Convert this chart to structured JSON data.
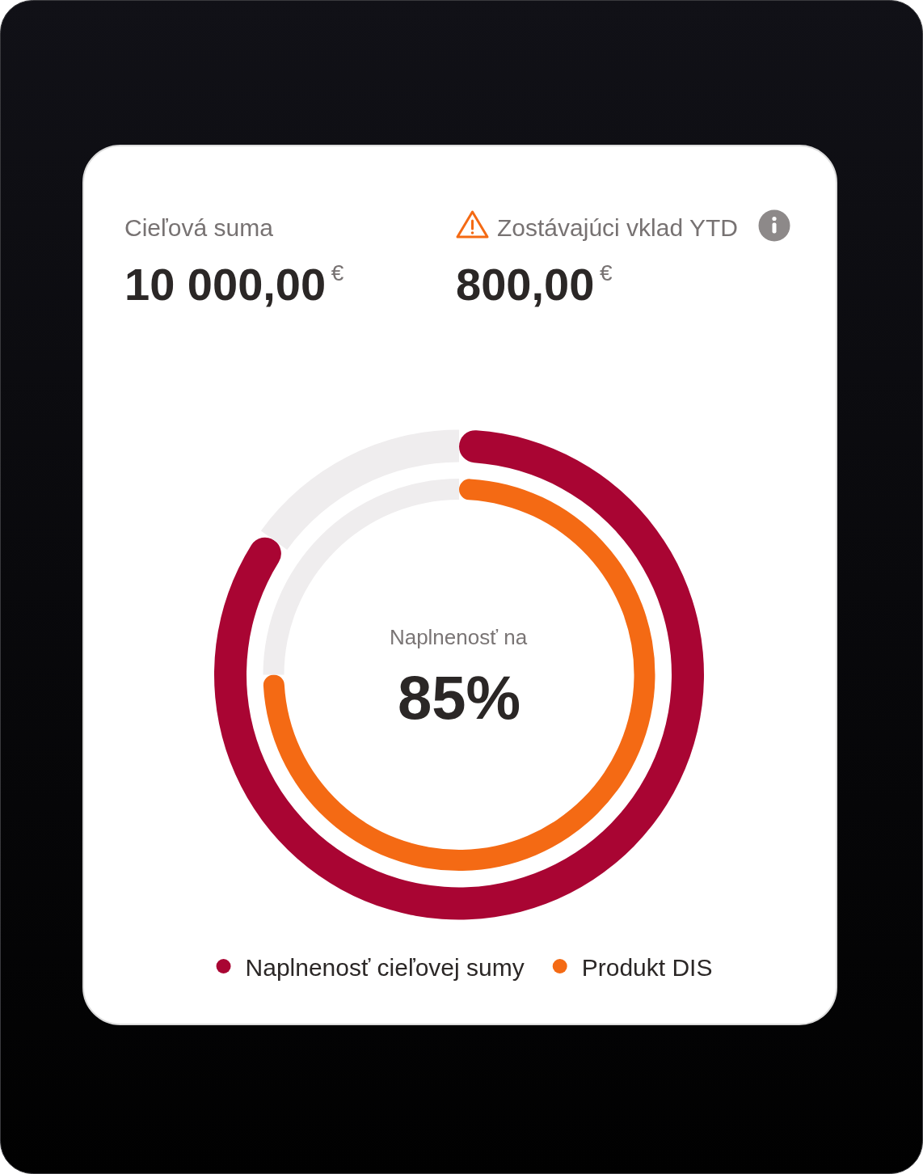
{
  "chart_data": [
    {
      "type": "donut",
      "categories": [
        null,
        null
      ],
      "series": [
        {
          "name": "Naplnenosť cieľovej sumy",
          "color": "#a90533",
          "values": [
            85,
            15
          ],
          "colors": [
            "#a90533",
            "#efedee"
          ]
        }
      ],
      "legend": "bottom",
      "annotations": [
        "Cieľová suma",
        "10 000,00$^{€}$",
        "Zostávajúci vklad YTD",
        "800,00$^{€}$",
        "Naplnenosť na",
        "85%"
      ]
    },
    {
      "type": "donut",
      "categories": [
        null,
        null
      ],
      "series": [
        {
          "name": "Produkt DIS",
          "color": "#f46a14",
          "values": [
            75,
            25
          ],
          "colors": [
            "#f46a14",
            "#efedee"
          ]
        }
      ],
      "legend": "bottom"
    }
  ]
}
